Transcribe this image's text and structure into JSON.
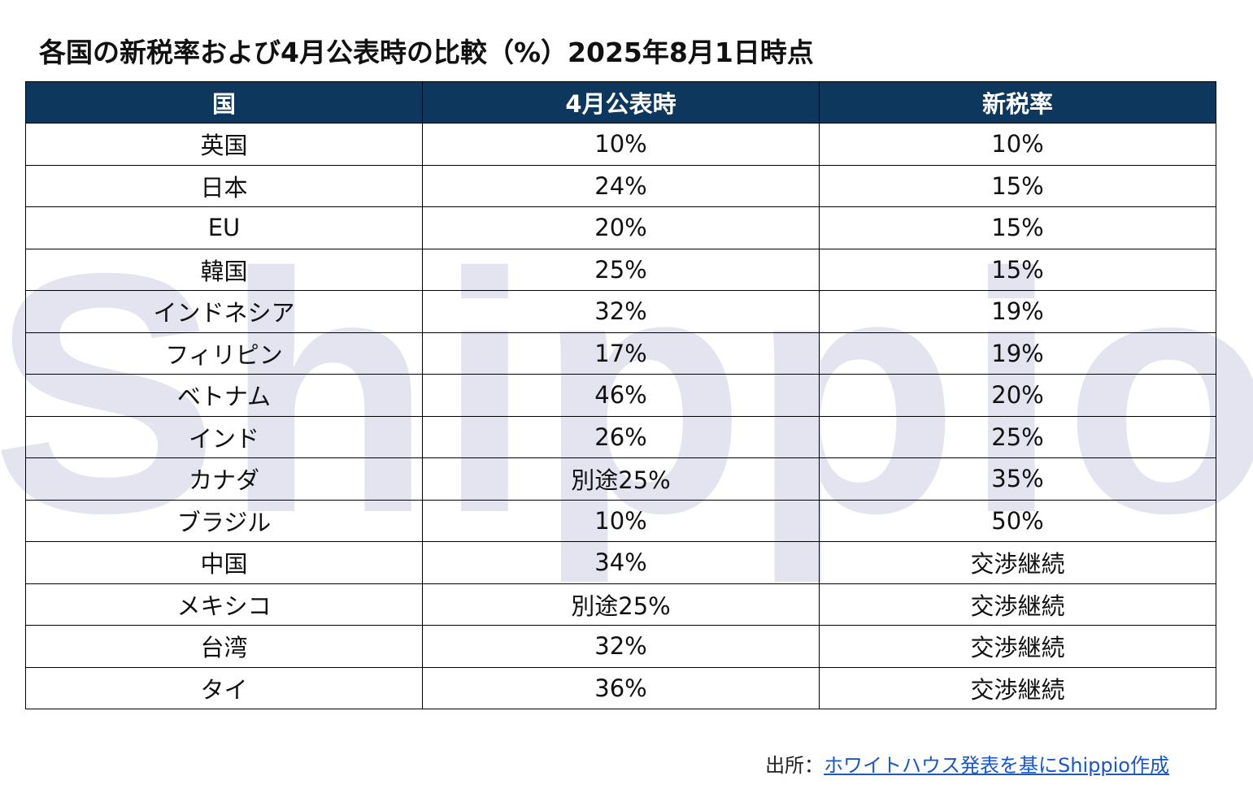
{
  "title": "各国の新税率および4月公表時の比較（%）2025年8月1日時点",
  "watermark": "Shippio",
  "table": {
    "headers": [
      "国",
      "4月公表時",
      "新税率"
    ],
    "rows": [
      [
        "英国",
        "10%",
        "10%"
      ],
      [
        "日本",
        "24%",
        "15%"
      ],
      [
        "EU",
        "20%",
        "15%"
      ],
      [
        "韓国",
        "25%",
        "15%"
      ],
      [
        "インドネシア",
        "32%",
        "19%"
      ],
      [
        "フィリピン",
        "17%",
        "19%"
      ],
      [
        "ベトナム",
        "46%",
        "20%"
      ],
      [
        "インド",
        "26%",
        "25%"
      ],
      [
        "カナダ",
        "別途25%",
        "35%"
      ],
      [
        "ブラジル",
        "10%",
        "50%"
      ],
      [
        "中国",
        "34%",
        "交渉継続"
      ],
      [
        "メキシコ",
        "別途25%",
        "交渉継続"
      ],
      [
        "台湾",
        "32%",
        "交渉継続"
      ],
      [
        "タイ",
        "36%",
        "交渉継続"
      ]
    ]
  },
  "source": {
    "prefix": "出所：",
    "link_text": "ホワイトハウス発表を基にShippio作成"
  },
  "colors": {
    "header_bg": "#0e375e",
    "header_text": "#ffffff",
    "watermark": "#e4e4f1",
    "link": "#1a56c4"
  }
}
